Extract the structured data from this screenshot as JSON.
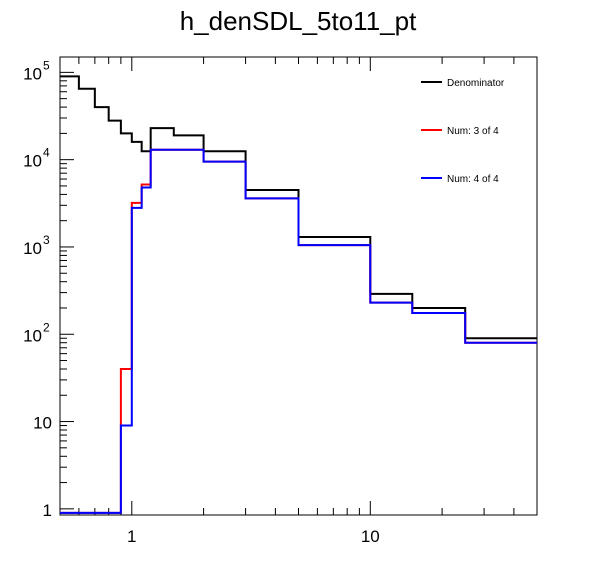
{
  "chart_data": {
    "type": "line",
    "title": "h_denSDL_5to11_pt",
    "xlabel": "",
    "ylabel": "",
    "x_scale": "log",
    "y_scale": "log",
    "xlim": [
      0.5,
      50
    ],
    "ylim": [
      0.85,
      150000
    ],
    "x_ticks": [
      {
        "value": 1,
        "label": "1"
      },
      {
        "value": 10,
        "label": "10"
      }
    ],
    "y_ticks": [
      {
        "value": 1,
        "label": "1",
        "sup": ""
      },
      {
        "value": 10,
        "label": "10",
        "sup": ""
      },
      {
        "value": 100,
        "label": "10",
        "sup": "2"
      },
      {
        "value": 1000,
        "label": "10",
        "sup": "3"
      },
      {
        "value": 10000,
        "label": "10",
        "sup": "4"
      },
      {
        "value": 100000,
        "label": "10",
        "sup": "5"
      }
    ],
    "bin_edges": [
      0.5,
      0.6,
      0.7,
      0.8,
      0.9,
      1.0,
      1.1,
      1.2,
      1.5,
      2.0,
      3.0,
      5.0,
      10.0,
      15.0,
      25.0,
      50.0
    ],
    "legend_position": "top-right",
    "series": [
      {
        "name": "Denominator",
        "color": "#000000",
        "values": [
          90000,
          65000,
          40000,
          28000,
          20000,
          16000,
          12500,
          23000,
          19000,
          12500,
          4500,
          1300,
          290,
          200,
          90
        ]
      },
      {
        "name": "Num: 3 of 4",
        "color": "#ff0000",
        "values": [
          0.9,
          0.9,
          0.9,
          0.9,
          40,
          3200,
          5200,
          13000,
          13000,
          9500,
          3600,
          1050,
          230,
          175,
          80
        ]
      },
      {
        "name": "Num: 4 of 4",
        "color": "#0000ff",
        "values": [
          0.9,
          0.9,
          0.9,
          0.9,
          9,
          2800,
          4800,
          13000,
          13000,
          9500,
          3600,
          1050,
          230,
          175,
          80
        ]
      }
    ]
  }
}
